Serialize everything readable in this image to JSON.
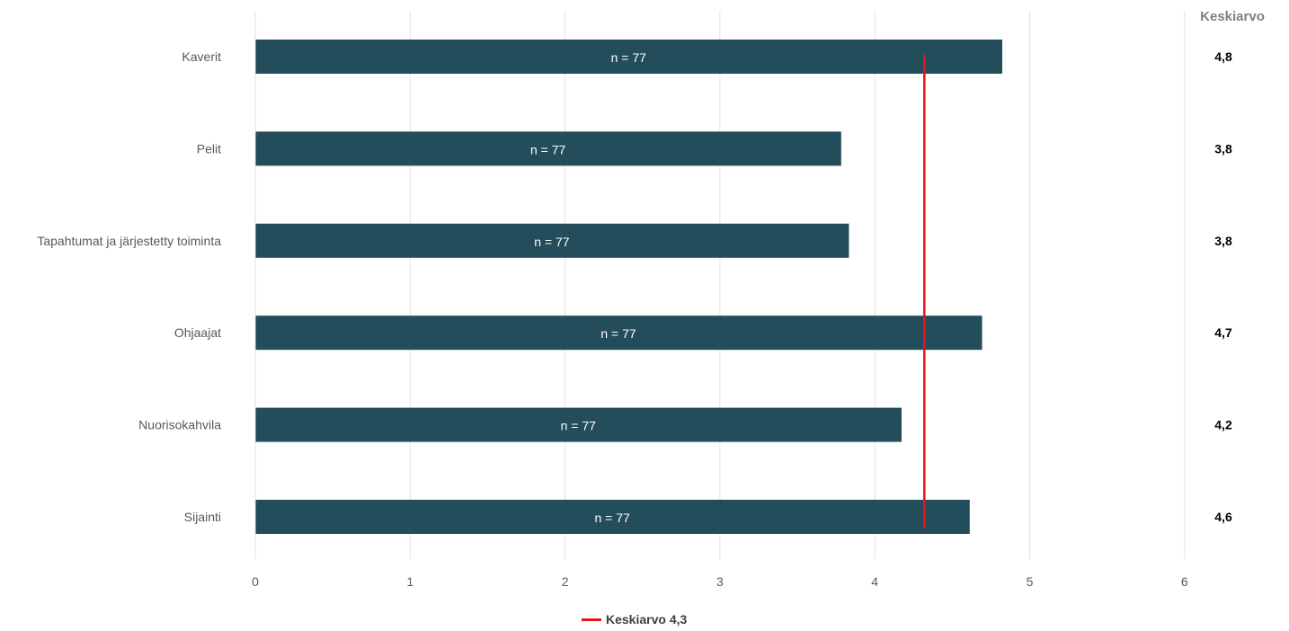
{
  "chart_data": {
    "type": "bar",
    "orientation": "horizontal",
    "categories": [
      "Kaverit",
      "Pelit",
      "Tapahtumat ja järjestetty toiminta",
      "Ohjaajat",
      "Nuorisokahvila",
      "Sijainti"
    ],
    "values": [
      4.82,
      3.78,
      3.83,
      4.69,
      4.17,
      4.61
    ],
    "bar_labels": [
      "n = 77",
      "n = 77",
      "n = 77",
      "n = 77",
      "n = 77",
      "n = 77"
    ],
    "mean_column_header": "Keskiarvo",
    "mean_column_values": [
      "4,8",
      "3,8",
      "3,8",
      "4,7",
      "4,2",
      "4,6"
    ],
    "reference_line": {
      "value": 4.32,
      "label": "Keskiarvo 4,3"
    },
    "xlim": [
      0,
      6
    ],
    "x_ticks": [
      "0",
      "1",
      "2",
      "3",
      "4",
      "5",
      "6"
    ],
    "grid": true,
    "legend_position": "bottom",
    "colors": {
      "bar": "#234d5a",
      "reference_line": "#e8141b",
      "grid": "#e3e3e3"
    }
  }
}
